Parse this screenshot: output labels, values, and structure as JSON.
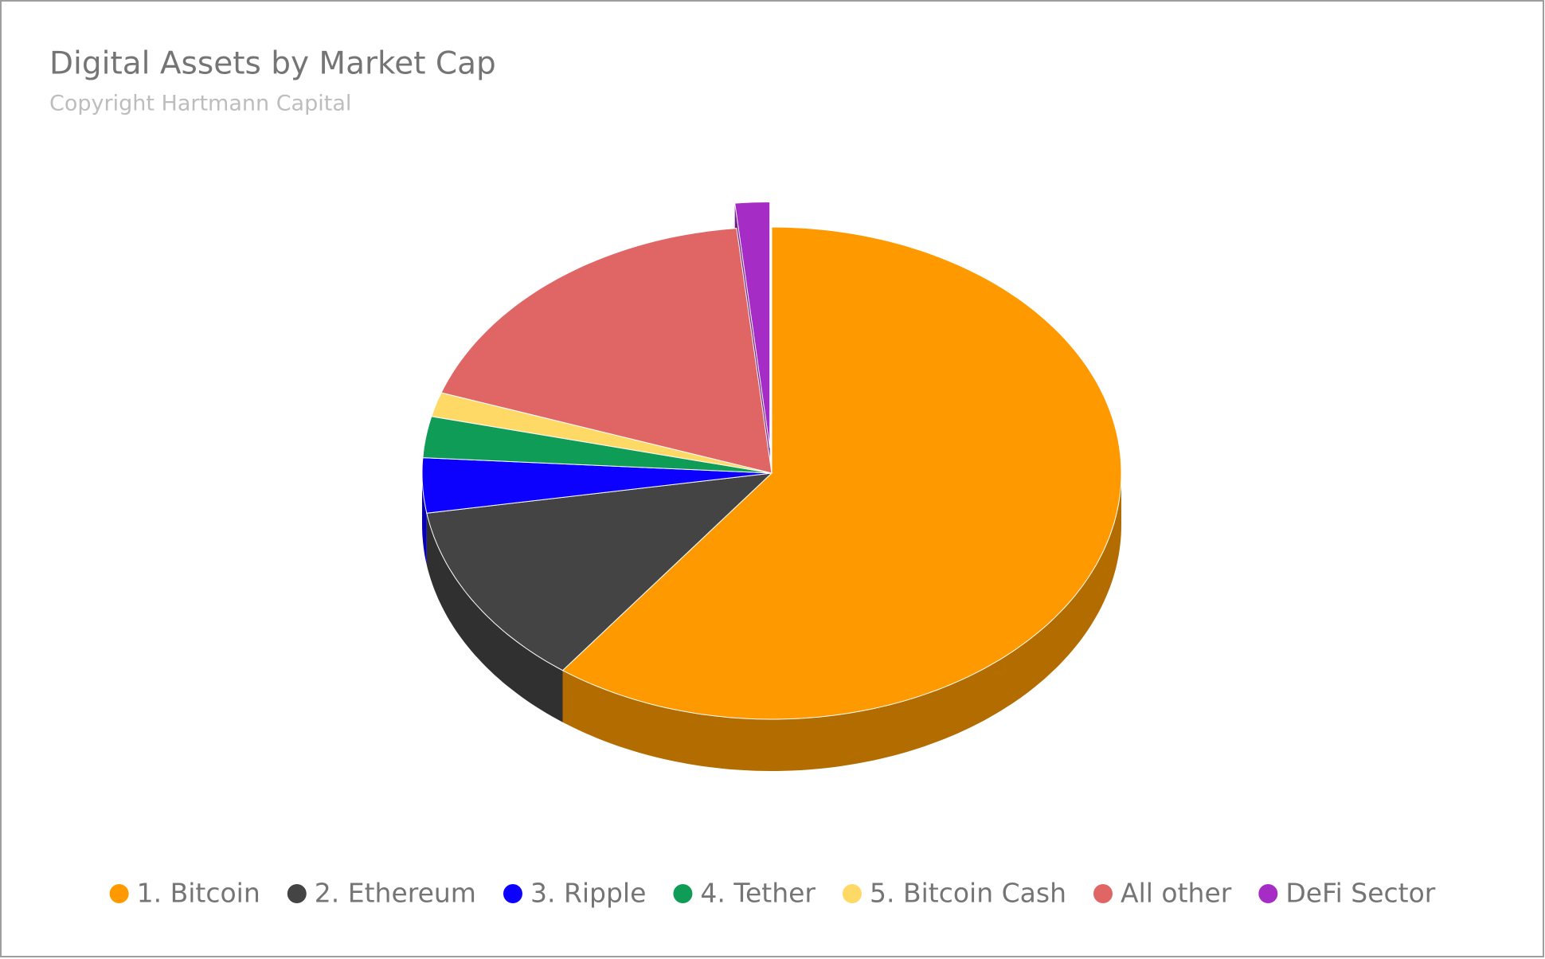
{
  "chart_data": {
    "type": "pie3d",
    "title": "Digital Assets by Market Cap",
    "subtitle": "Copyright Hartmann Capital",
    "categories": [
      "1. Bitcoin",
      "2. Ethereum",
      "3. Ripple",
      "4. Tether",
      "5. Bitcoin Cash",
      "All other",
      "DeFi Sector"
    ],
    "values": [
      60.2,
      12.2,
      3.6,
      2.7,
      1.6,
      18.1,
      1.6
    ],
    "colors": [
      "#fe9a00",
      "#444444",
      "#0c00ff",
      "#0f9c57",
      "#fed966",
      "#e06666",
      "#a62cc6"
    ],
    "exploded": [
      6
    ],
    "legend": "bottom"
  }
}
